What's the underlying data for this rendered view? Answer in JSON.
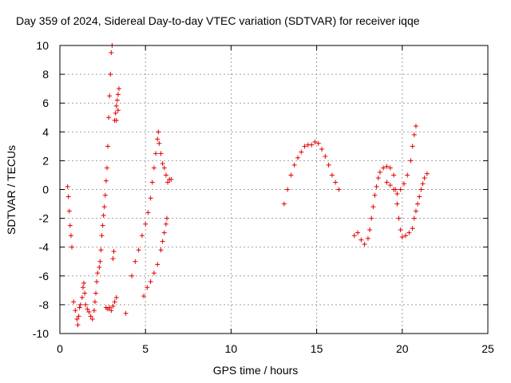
{
  "chart_data": {
    "type": "scatter",
    "title": "Day 359 of 2024, Sidereal Day-to-day VTEC variation (SDTVAR) for receiver iqqe",
    "xlabel": "GPS time / hours",
    "ylabel": "SDTVAR / TECUs",
    "xlim": [
      0,
      25
    ],
    "ylim": [
      -10,
      10
    ],
    "xticks": [
      0,
      5,
      10,
      15,
      20,
      25
    ],
    "yticks": [
      -10,
      -8,
      -6,
      -4,
      -2,
      0,
      2,
      4,
      6,
      8,
      10
    ],
    "xtick_labels": [
      "0",
      "5",
      "10",
      "15",
      "20",
      "25"
    ],
    "ytick_labels": [
      "-10",
      "-8",
      "-6",
      "-4",
      "-2",
      "0",
      "2",
      "4",
      "6",
      "8",
      "10"
    ],
    "grid": true,
    "marker": "+",
    "color": "#e00000",
    "series": [
      {
        "name": "SDTVAR",
        "points": [
          [
            0.45,
            0.2
          ],
          [
            0.5,
            -0.5
          ],
          [
            0.55,
            -1.5
          ],
          [
            0.6,
            -2.5
          ],
          [
            0.65,
            -3.2
          ],
          [
            0.7,
            -4.0
          ],
          [
            0.8,
            -7.8
          ],
          [
            0.9,
            -8.4
          ],
          [
            1.0,
            -9.0
          ],
          [
            1.05,
            -9.4
          ],
          [
            1.1,
            -8.8
          ],
          [
            1.15,
            -8.2
          ],
          [
            1.2,
            -8.0
          ],
          [
            1.3,
            -7.5
          ],
          [
            1.35,
            -6.8
          ],
          [
            1.4,
            -6.5
          ],
          [
            1.45,
            -7.2
          ],
          [
            1.5,
            -8.0
          ],
          [
            1.6,
            -8.3
          ],
          [
            1.7,
            -8.5
          ],
          [
            1.8,
            -8.8
          ],
          [
            1.9,
            -9.0
          ],
          [
            2.0,
            -8.4
          ],
          [
            2.05,
            -7.8
          ],
          [
            2.1,
            -7.2
          ],
          [
            2.15,
            -6.4
          ],
          [
            2.2,
            -5.8
          ],
          [
            2.3,
            -5.4
          ],
          [
            2.35,
            -5.0
          ],
          [
            2.4,
            -4.2
          ],
          [
            2.45,
            -3.2
          ],
          [
            2.5,
            -2.5
          ],
          [
            2.55,
            -1.8
          ],
          [
            2.6,
            -1.2
          ],
          [
            2.65,
            -0.4
          ],
          [
            2.7,
            0.6
          ],
          [
            2.75,
            1.5
          ],
          [
            2.8,
            3.0
          ],
          [
            2.85,
            5.0
          ],
          [
            2.9,
            6.5
          ],
          [
            2.95,
            8.0
          ],
          [
            3.0,
            9.5
          ],
          [
            3.05,
            10.0
          ],
          [
            2.7,
            -8.2
          ],
          [
            2.8,
            -8.3
          ],
          [
            2.9,
            -8.2
          ],
          [
            3.0,
            -8.4
          ],
          [
            3.1,
            -8.1
          ],
          [
            3.2,
            -7.8
          ],
          [
            3.3,
            -7.5
          ],
          [
            3.1,
            -4.8
          ],
          [
            3.15,
            -4.3
          ],
          [
            3.2,
            4.8
          ],
          [
            3.25,
            5.3
          ],
          [
            3.3,
            5.8
          ],
          [
            3.35,
            6.2
          ],
          [
            3.4,
            6.6
          ],
          [
            3.45,
            7.0
          ],
          [
            3.3,
            4.8
          ],
          [
            3.4,
            5.5
          ],
          [
            3.85,
            -8.6
          ],
          [
            4.2,
            -6.0
          ],
          [
            4.4,
            -5.0
          ],
          [
            4.6,
            -4.2
          ],
          [
            4.8,
            -3.2
          ],
          [
            5.0,
            -2.4
          ],
          [
            5.15,
            -1.6
          ],
          [
            5.3,
            -0.6
          ],
          [
            5.4,
            0.5
          ],
          [
            5.5,
            1.5
          ],
          [
            5.6,
            2.5
          ],
          [
            5.7,
            3.5
          ],
          [
            5.75,
            4.0
          ],
          [
            5.8,
            3.2
          ],
          [
            5.9,
            2.5
          ],
          [
            6.0,
            1.8
          ],
          [
            6.1,
            1.5
          ],
          [
            6.2,
            1.0
          ],
          [
            6.3,
            0.5
          ],
          [
            6.4,
            0.7
          ],
          [
            6.5,
            0.7
          ],
          [
            4.9,
            -7.4
          ],
          [
            5.1,
            -6.8
          ],
          [
            5.3,
            -6.4
          ],
          [
            5.5,
            -5.8
          ],
          [
            5.7,
            -5.2
          ],
          [
            5.9,
            -4.2
          ],
          [
            6.0,
            -3.6
          ],
          [
            6.1,
            -3.0
          ],
          [
            6.2,
            -2.4
          ],
          [
            6.25,
            -2.0
          ],
          [
            13.1,
            -1.0
          ],
          [
            13.3,
            0.0
          ],
          [
            13.5,
            1.0
          ],
          [
            13.7,
            1.7
          ],
          [
            13.9,
            2.2
          ],
          [
            14.1,
            2.6
          ],
          [
            14.3,
            3.0
          ],
          [
            14.5,
            3.1
          ],
          [
            14.7,
            3.1
          ],
          [
            14.9,
            3.3
          ],
          [
            15.1,
            3.2
          ],
          [
            15.3,
            2.8
          ],
          [
            15.5,
            2.3
          ],
          [
            15.7,
            1.7
          ],
          [
            15.9,
            1.0
          ],
          [
            16.1,
            0.5
          ],
          [
            16.3,
            0.0
          ],
          [
            17.2,
            -3.2
          ],
          [
            17.4,
            -3.0
          ],
          [
            17.6,
            -3.5
          ],
          [
            17.8,
            -3.8
          ],
          [
            18.0,
            -3.4
          ],
          [
            18.1,
            -2.8
          ],
          [
            18.2,
            -2.0
          ],
          [
            18.3,
            -1.2
          ],
          [
            18.4,
            -0.4
          ],
          [
            18.5,
            0.2
          ],
          [
            18.6,
            0.8
          ],
          [
            18.7,
            1.2
          ],
          [
            18.9,
            1.5
          ],
          [
            19.1,
            1.6
          ],
          [
            19.3,
            1.5
          ],
          [
            19.5,
            1.0
          ],
          [
            19.6,
            0.0
          ],
          [
            19.7,
            -1.0
          ],
          [
            19.8,
            -2.0
          ],
          [
            19.9,
            -2.8
          ],
          [
            20.0,
            -3.3
          ],
          [
            20.2,
            -3.2
          ],
          [
            20.4,
            -3.0
          ],
          [
            20.6,
            -2.7
          ],
          [
            20.7,
            -2.0
          ],
          [
            20.8,
            -1.5
          ],
          [
            20.9,
            -1.0
          ],
          [
            21.0,
            -0.5
          ],
          [
            21.1,
            0.0
          ],
          [
            21.2,
            0.4
          ],
          [
            21.3,
            0.8
          ],
          [
            21.45,
            1.1
          ],
          [
            19.1,
            0.5
          ],
          [
            19.3,
            0.3
          ],
          [
            19.5,
            0.0
          ],
          [
            19.7,
            -0.3
          ],
          [
            19.9,
            0.0
          ],
          [
            20.1,
            0.4
          ],
          [
            20.3,
            1.0
          ],
          [
            20.5,
            2.0
          ],
          [
            20.6,
            3.0
          ],
          [
            20.7,
            3.8
          ],
          [
            20.8,
            4.4
          ]
        ]
      }
    ]
  }
}
